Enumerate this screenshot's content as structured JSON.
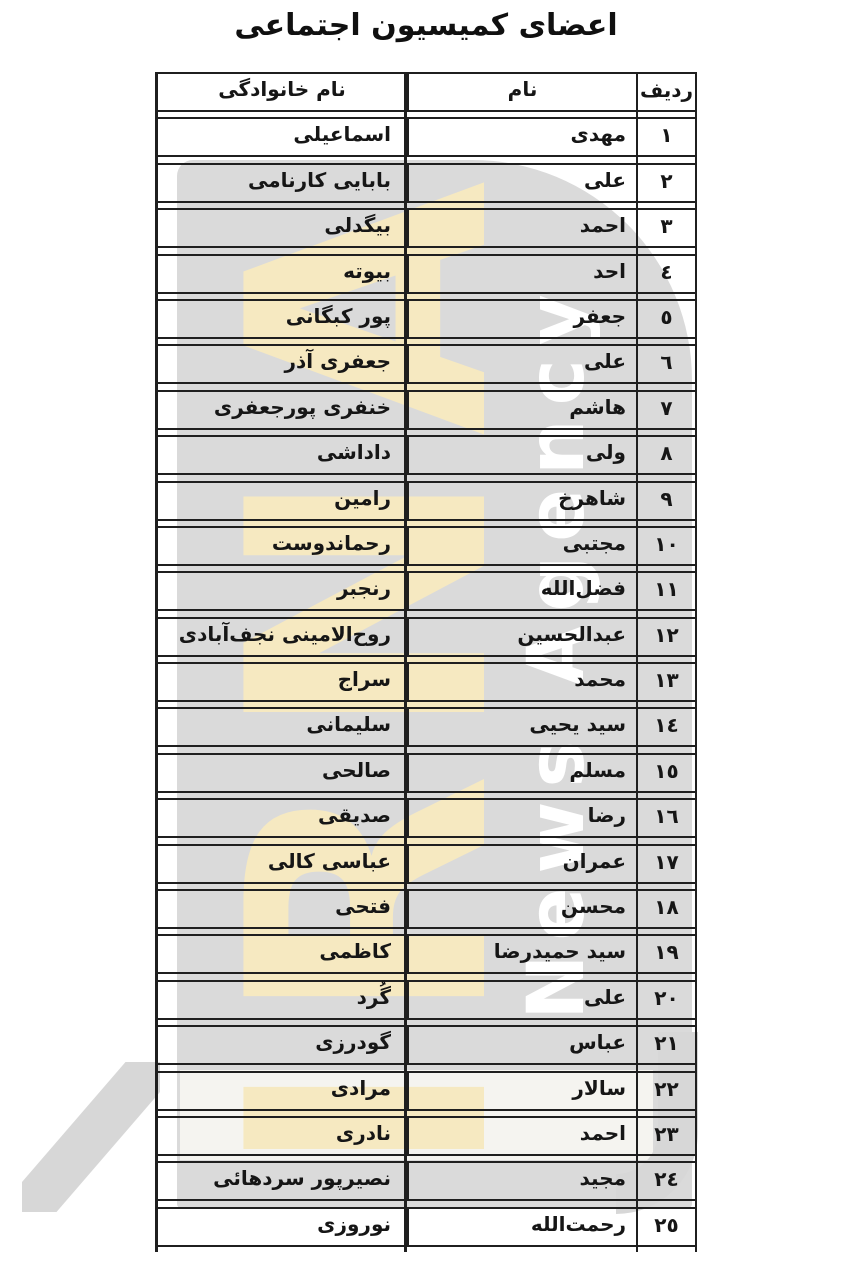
{
  "title": "اعضای کمیسیون اجتماعی",
  "watermark": {
    "brand": "IRNA",
    "caption": "News Agency",
    "brand_color": "#F6E9C1",
    "panel_color": "#DADADA",
    "caption_color": "#FFFFFF"
  },
  "table": {
    "headers": {
      "row": "ردیف",
      "first_name": "نام",
      "last_name": "نام خانوادگی"
    },
    "rows": [
      {
        "num": "۱",
        "first": "مهدی",
        "last": "اسماعیلی"
      },
      {
        "num": "۲",
        "first": "علی",
        "last": "بابایی کارنامی"
      },
      {
        "num": "۳",
        "first": "احمد",
        "last": "بیگدلی"
      },
      {
        "num": "٤",
        "first": "احد",
        "last": "بیوته"
      },
      {
        "num": "٥",
        "first": "جعفر",
        "last": "پور کبگانی"
      },
      {
        "num": "٦",
        "first": "علی",
        "last": "جعفری آذر"
      },
      {
        "num": "۷",
        "first": "هاشم",
        "last": "خنفری پورجعفری"
      },
      {
        "num": "۸",
        "first": "ولی",
        "last": "داداشی"
      },
      {
        "num": "۹",
        "first": "شاهرخ",
        "last": "رامین"
      },
      {
        "num": "۱۰",
        "first": "مجتبی",
        "last": "رحماندوست"
      },
      {
        "num": "۱۱",
        "first": "فضل‌الله",
        "last": "رنجبر"
      },
      {
        "num": "۱۲",
        "first": "عبدالحسین",
        "last": "روح‌الامینی نجف‌آبادی"
      },
      {
        "num": "۱۳",
        "first": "محمد",
        "last": "سراج"
      },
      {
        "num": "۱٤",
        "first": "سید یحیی",
        "last": "سلیمانی"
      },
      {
        "num": "۱٥",
        "first": "مسلم",
        "last": "صالحی"
      },
      {
        "num": "۱٦",
        "first": "رضا",
        "last": "صدیقی"
      },
      {
        "num": "۱۷",
        "first": "عمران",
        "last": "عباسی کالی"
      },
      {
        "num": "۱۸",
        "first": "محسن",
        "last": "فتحی"
      },
      {
        "num": "۱۹",
        "first": "سید حمیدرضا",
        "last": "کاظمی"
      },
      {
        "num": "۲۰",
        "first": "علی",
        "last": "گُرد"
      },
      {
        "num": "۲۱",
        "first": "عباس",
        "last": "گودرزی"
      },
      {
        "num": "۲۲",
        "first": "سالار",
        "last": "مرادی"
      },
      {
        "num": "۲۳",
        "first": "احمد",
        "last": "نادری"
      },
      {
        "num": "۲٤",
        "first": "مجید",
        "last": "نصیرپور سردهائی"
      },
      {
        "num": "۲٥",
        "first": "رحمت‌الله",
        "last": "نوروزی"
      }
    ]
  }
}
